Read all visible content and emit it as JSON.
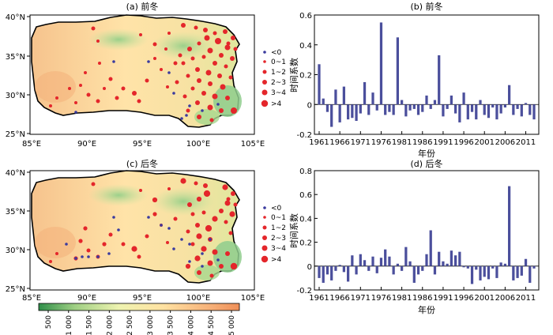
{
  "colors": {
    "station_negative": "#3b3b9e",
    "station_positive": "#e4262b",
    "bar": "#4b4f9c",
    "terrain_low": "#2f8f4a",
    "terrain_mid": "#ffe6a8",
    "terrain_high": "#f0955c"
  },
  "maps": [
    {
      "title": "(a) 前冬",
      "lat_ticks": [
        "40°N",
        "35°N",
        "30°N",
        "25°N"
      ],
      "lon_ticks": [
        "85°E",
        "90°E",
        "95°E",
        "100°E",
        "105°E"
      ],
      "legend": [
        "<0",
        "0~1",
        "1~2",
        "2~3",
        "3~4",
        ">4"
      ]
    },
    {
      "title": "(c) 后冬",
      "lat_ticks": [
        "40°N",
        "35°N",
        "30°N",
        "25°N"
      ],
      "lon_ticks": [
        "85°E",
        "90°E",
        "95°E",
        "100°E",
        "105°E"
      ],
      "legend": [
        "<0",
        "0~1",
        "1~2",
        "2~3",
        "3~4",
        ">4"
      ]
    }
  ],
  "colorbar": {
    "ticks": [
      "500",
      "1 000",
      "1 500",
      "2 000",
      "2 500",
      "3 000",
      "3 500",
      "4 000",
      "4 500",
      "5 000"
    ]
  },
  "chart_data": [
    {
      "type": "bar",
      "title": "(b) 前冬",
      "xlabel": "年份",
      "ylabel": "时间系数",
      "ylim": [
        -0.2,
        0.6
      ],
      "yticks": [
        "-0.2",
        "0",
        "0.2",
        "0.4",
        "0.6"
      ],
      "xtick_labels": [
        "1961",
        "1966",
        "1971",
        "1976",
        "1981",
        "1986",
        "1991",
        "1996",
        "2001",
        "2006",
        "2011"
      ],
      "x": [
        1961,
        1962,
        1963,
        1964,
        1965,
        1966,
        1967,
        1968,
        1969,
        1970,
        1971,
        1972,
        1973,
        1974,
        1975,
        1976,
        1977,
        1978,
        1979,
        1980,
        1981,
        1982,
        1983,
        1984,
        1985,
        1986,
        1987,
        1988,
        1989,
        1990,
        1991,
        1992,
        1993,
        1994,
        1995,
        1996,
        1997,
        1998,
        1999,
        2000,
        2001,
        2002,
        2003,
        2004,
        2005,
        2006,
        2007,
        2008,
        2009,
        2010,
        2011,
        2012,
        2013
      ],
      "values": [
        0.27,
        0.04,
        -0.05,
        -0.15,
        0.1,
        -0.12,
        0.12,
        -0.1,
        -0.09,
        -0.11,
        -0.06,
        0.15,
        -0.07,
        0.08,
        -0.04,
        0.55,
        -0.07,
        -0.05,
        -0.07,
        0.45,
        0.03,
        -0.08,
        -0.04,
        -0.03,
        -0.07,
        -0.05,
        0.06,
        -0.03,
        0.03,
        0.33,
        -0.08,
        -0.03,
        0.06,
        -0.06,
        -0.12,
        0.08,
        -0.1,
        -0.05,
        -0.1,
        0.03,
        -0.07,
        -0.09,
        -0.02,
        -0.1,
        -0.06,
        -0.02,
        0.13,
        -0.07,
        -0.03,
        -0.08,
        0.01,
        -0.07,
        -0.1
      ]
    },
    {
      "type": "bar",
      "title": "(d) 后冬",
      "xlabel": "年份",
      "ylabel": "时间系数",
      "ylim": [
        -0.2,
        0.8
      ],
      "yticks": [
        "-0.2",
        "0",
        "0.2",
        "0.4",
        "0.6",
        "0.8"
      ],
      "xtick_labels": [
        "1961",
        "1966",
        "1971",
        "1976",
        "1981",
        "1986",
        "1991",
        "1996",
        "2001",
        "2006",
        "2011"
      ],
      "x": [
        1961,
        1962,
        1963,
        1964,
        1965,
        1966,
        1967,
        1968,
        1969,
        1970,
        1971,
        1972,
        1973,
        1974,
        1975,
        1976,
        1977,
        1978,
        1979,
        1980,
        1981,
        1982,
        1983,
        1984,
        1985,
        1986,
        1987,
        1988,
        1989,
        1990,
        1991,
        1992,
        1993,
        1994,
        1995,
        1996,
        1997,
        1998,
        1999,
        2000,
        2001,
        2002,
        2003,
        2004,
        2005,
        2006,
        2007,
        2008,
        2009,
        2010,
        2011,
        2012,
        2013
      ],
      "values": [
        -0.1,
        -0.14,
        -0.07,
        -0.12,
        -0.04,
        0.01,
        -0.05,
        -0.13,
        0.09,
        -0.07,
        0.1,
        0.05,
        -0.04,
        0.08,
        -0.06,
        0.07,
        0.14,
        0.08,
        -0.07,
        0.02,
        -0.04,
        0.16,
        0.04,
        -0.14,
        -0.07,
        -0.04,
        0.1,
        0.3,
        -0.07,
        0.12,
        0.04,
        0.02,
        0.13,
        0.09,
        0.12,
        -0.01,
        -0.02,
        -0.15,
        -0.03,
        -0.12,
        -0.09,
        -0.11,
        -0.02,
        -0.1,
        0.03,
        0.02,
        0.67,
        -0.12,
        -0.1,
        -0.08,
        0.06,
        -0.14,
        -0.02
      ]
    }
  ]
}
